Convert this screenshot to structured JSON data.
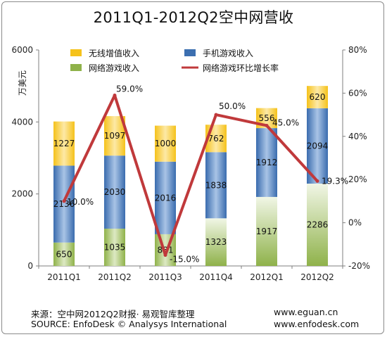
{
  "chart_data": {
    "type": "bar",
    "stacked": true,
    "title": "2011Q1-2012Q2空中网营收",
    "ylabel": "万美元",
    "ylim": [
      0,
      6000
    ],
    "yticks": [
      "0",
      "2000",
      "4000",
      "6000"
    ],
    "y2lim": [
      -20,
      80
    ],
    "y2ticks": [
      "-20%",
      "0%",
      "20%",
      "40%",
      "60%",
      "80%"
    ],
    "categories": [
      "2011Q1",
      "2011Q2",
      "2011Q3",
      "2011Q4",
      "2012Q1",
      "2012Q2"
    ],
    "series": [
      {
        "name": "网络游戏收入",
        "color": "#8fb24a",
        "values": [
          650,
          1035,
          881,
          1323,
          1917,
          2286
        ]
      },
      {
        "name": "手机游戏收入",
        "color": "#3c6fb0",
        "values": [
          2136,
          2030,
          2016,
          1838,
          1912,
          2094
        ]
      },
      {
        "name": "无线增值收入",
        "color": "#f5c21b",
        "values": [
          1227,
          1097,
          1000,
          762,
          556,
          620
        ]
      }
    ],
    "line": {
      "name": "网络游戏环比增长率",
      "color": "#c0393b",
      "values": [
        10.0,
        59.0,
        -15.0,
        50.0,
        45.0,
        19.3
      ],
      "labels": [
        "10.0%",
        "59.0%",
        "-15.0%",
        "50.0%",
        "45.0%",
        "19.3%"
      ]
    },
    "legend": {
      "placement": "top",
      "entries": [
        "无线增值收入",
        "手机游戏收入",
        "网络游戏收入",
        "网络游戏环比增长率"
      ]
    }
  },
  "footer": {
    "source_cn": "来源：空中网2012Q2财报· 易观智库整理",
    "source_en": "SOURCE: EnfoDesk © Analysys International",
    "url1": "www.eguan.cn",
    "url2": "www.enfodesk.com"
  }
}
